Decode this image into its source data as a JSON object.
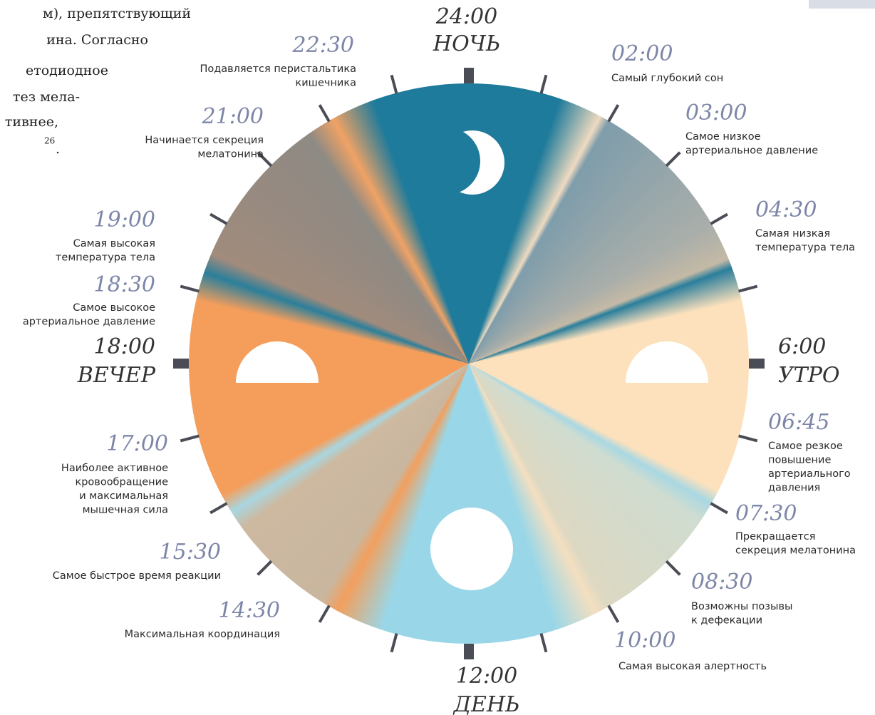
{
  "text_fragment": {
    "lines": [
      "м), препятствующий",
      "ина. Согласно",
      "етодиодное",
      "тез мела-",
      "тивнее,"
    ],
    "footnote": "26",
    "end": "."
  },
  "major": [
    {
      "time": "24:00",
      "label": "НОЧЬ"
    },
    {
      "time": "6:00",
      "label": "УТРО"
    },
    {
      "time": "12:00",
      "label": "ДЕНЬ"
    },
    {
      "time": "18:00",
      "label": "ВЕЧЕР"
    }
  ],
  "events": [
    {
      "time": "22:30",
      "lines": [
        "Подавляется перистальтика",
        "кишечника"
      ]
    },
    {
      "time": "02:00",
      "lines": [
        "Самый глубокий сон"
      ]
    },
    {
      "time": "21:00",
      "lines": [
        "Начинается секреция",
        "мелатонина"
      ]
    },
    {
      "time": "03:00",
      "lines": [
        "Самое низкое",
        "артериальное давление"
      ]
    },
    {
      "time": "04:30",
      "lines": [
        "Самая низкая",
        "температура тела"
      ]
    },
    {
      "time": "19:00",
      "lines": [
        "Самая высокая",
        "температура тела"
      ]
    },
    {
      "time": "18:30",
      "lines": [
        "Самое высокое",
        "артериальное давление"
      ]
    },
    {
      "time": "06:45",
      "lines": [
        "Самое резкое",
        "повышение",
        "артериального",
        "давления"
      ]
    },
    {
      "time": "17:00",
      "lines": [
        "Наиболее активное",
        "кровообращение",
        "и максимальная",
        "мышечная сила"
      ]
    },
    {
      "time": "07:30",
      "lines": [
        "Прекращается",
        "секреция мелатонина"
      ]
    },
    {
      "time": "15:30",
      "lines": [
        "Самое быстрое время реакции"
      ]
    },
    {
      "time": "08:30",
      "lines": [
        "Возможны позывы",
        "к дефекации"
      ]
    },
    {
      "time": "14:30",
      "lines": [
        "Максимальная координация"
      ]
    },
    {
      "time": "10:00",
      "lines": [
        "Самая высокая алертность"
      ]
    }
  ]
}
